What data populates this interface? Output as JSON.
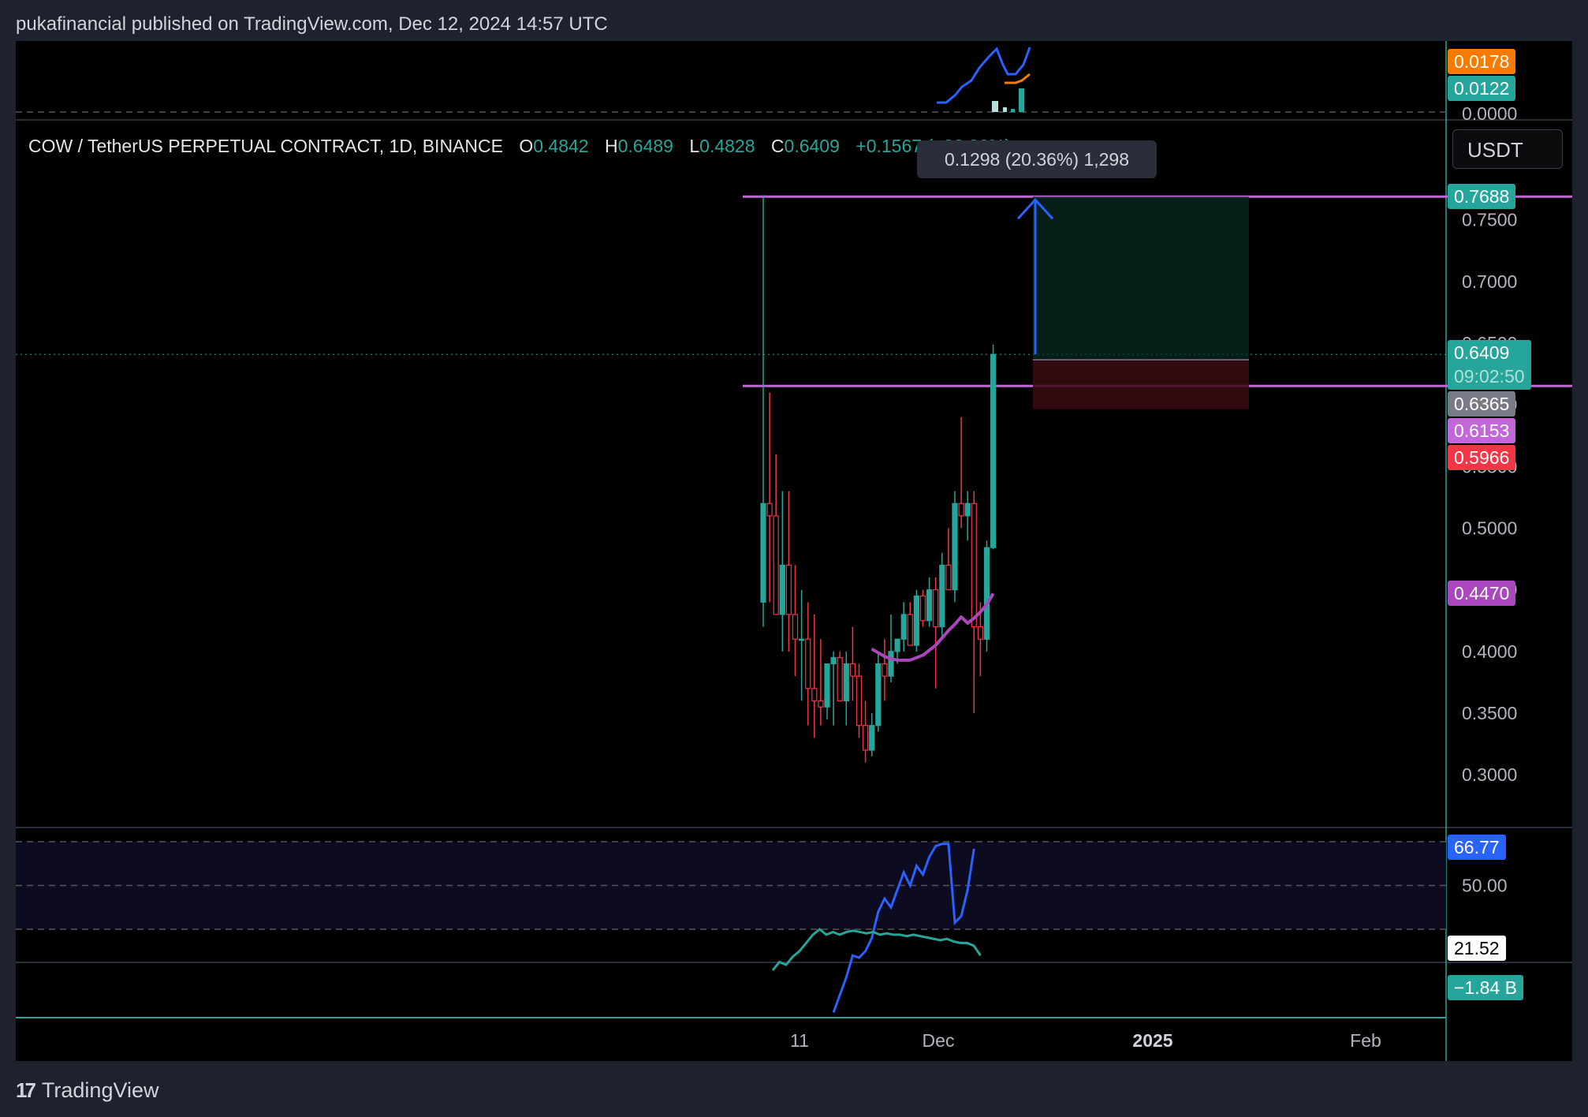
{
  "header": {
    "publisher_line": "pukafinancial published on TradingView.com, Dec 12, 2024 14:57 UTC"
  },
  "footer": {
    "brand": "TradingView",
    "logo_icon": "tradingview-logo-icon"
  },
  "toolbar": {
    "currency": "USDT"
  },
  "legend": {
    "symbol": "COW / TetherUS PERPETUAL CONTRACT, 1D, BINANCE",
    "o_label": "O",
    "o": "0.4842",
    "h_label": "H",
    "h": "0.6489",
    "l_label": "L",
    "l": "0.4828",
    "c_label": "C",
    "c": "0.6409",
    "change": "+0.1567 (+32.36%)"
  },
  "measure": {
    "text": "0.1298 (20.36%) 1,298"
  },
  "colors": {
    "up": "#26a69a",
    "down": "#f23645",
    "ma": "#ab47bc",
    "level": "#c266d9",
    "rsi": "#2962ff",
    "target": "#2962ff",
    "background": "#000000"
  },
  "chart_data": [
    {
      "type": "candlestick",
      "title": "COW / TetherUS PERPETUAL CONTRACT, 1D, BINANCE",
      "ylim": [
        0.272,
        0.831
      ],
      "y_ticks": [
        "0.7500",
        "0.7000",
        "0.6500",
        "0.6000",
        "0.5500",
        "0.5000",
        "0.4500",
        "0.4000",
        "0.3500",
        "0.3000"
      ],
      "x_ticks": [
        {
          "label": "11",
          "day": 0
        },
        {
          "label": "Dec",
          "day": 20
        },
        {
          "label": "2025",
          "day": 51,
          "bold": true
        },
        {
          "label": "Feb",
          "day": 82
        }
      ],
      "candles": [
        {
          "o": 0.44,
          "h": 0.77,
          "l": 0.42,
          "c": 0.52
        },
        {
          "o": 0.52,
          "h": 0.61,
          "l": 0.44,
          "c": 0.51
        },
        {
          "o": 0.51,
          "h": 0.56,
          "l": 0.43,
          "c": 0.43
        },
        {
          "o": 0.43,
          "h": 0.53,
          "l": 0.4,
          "c": 0.47
        },
        {
          "o": 0.47,
          "h": 0.53,
          "l": 0.4,
          "c": 0.43
        },
        {
          "o": 0.43,
          "h": 0.47,
          "l": 0.38,
          "c": 0.41
        },
        {
          "o": 0.41,
          "h": 0.45,
          "l": 0.36,
          "c": 0.41
        },
        {
          "o": 0.41,
          "h": 0.44,
          "l": 0.34,
          "c": 0.37
        },
        {
          "o": 0.37,
          "h": 0.43,
          "l": 0.33,
          "c": 0.36
        },
        {
          "o": 0.36,
          "h": 0.41,
          "l": 0.34,
          "c": 0.355
        },
        {
          "o": 0.355,
          "h": 0.39,
          "l": 0.345,
          "c": 0.39
        },
        {
          "o": 0.39,
          "h": 0.4,
          "l": 0.34,
          "c": 0.395
        },
        {
          "o": 0.395,
          "h": 0.4,
          "l": 0.36,
          "c": 0.36
        },
        {
          "o": 0.36,
          "h": 0.4,
          "l": 0.34,
          "c": 0.39
        },
        {
          "o": 0.39,
          "h": 0.42,
          "l": 0.36,
          "c": 0.38
        },
        {
          "o": 0.38,
          "h": 0.39,
          "l": 0.33,
          "c": 0.34
        },
        {
          "o": 0.34,
          "h": 0.36,
          "l": 0.31,
          "c": 0.32
        },
        {
          "o": 0.32,
          "h": 0.35,
          "l": 0.315,
          "c": 0.34
        },
        {
          "o": 0.34,
          "h": 0.4,
          "l": 0.335,
          "c": 0.39
        },
        {
          "o": 0.39,
          "h": 0.41,
          "l": 0.36,
          "c": 0.38
        },
        {
          "o": 0.38,
          "h": 0.43,
          "l": 0.375,
          "c": 0.4
        },
        {
          "o": 0.4,
          "h": 0.41,
          "l": 0.39,
          "c": 0.41
        },
        {
          "o": 0.41,
          "h": 0.44,
          "l": 0.4,
          "c": 0.43
        },
        {
          "o": 0.43,
          "h": 0.44,
          "l": 0.41,
          "c": 0.405
        },
        {
          "o": 0.405,
          "h": 0.45,
          "l": 0.4,
          "c": 0.445
        },
        {
          "o": 0.445,
          "h": 0.45,
          "l": 0.42,
          "c": 0.425
        },
        {
          "o": 0.425,
          "h": 0.46,
          "l": 0.42,
          "c": 0.45
        },
        {
          "o": 0.45,
          "h": 0.46,
          "l": 0.37,
          "c": 0.42
        },
        {
          "o": 0.42,
          "h": 0.48,
          "l": 0.41,
          "c": 0.47
        },
        {
          "o": 0.47,
          "h": 0.5,
          "l": 0.45,
          "c": 0.45
        },
        {
          "o": 0.45,
          "h": 0.53,
          "l": 0.44,
          "c": 0.52
        },
        {
          "o": 0.52,
          "h": 0.59,
          "l": 0.5,
          "c": 0.51
        },
        {
          "o": 0.51,
          "h": 0.53,
          "l": 0.49,
          "c": 0.52
        },
        {
          "o": 0.52,
          "h": 0.53,
          "l": 0.35,
          "c": 0.42
        },
        {
          "o": 0.42,
          "h": 0.44,
          "l": 0.38,
          "c": 0.41
        },
        {
          "o": 0.41,
          "h": 0.49,
          "l": 0.4,
          "c": 0.4842
        },
        {
          "o": 0.4842,
          "h": 0.6489,
          "l": 0.4828,
          "c": 0.6409
        }
      ],
      "moving_average": [
        {
          "i": 17,
          "v": 0.402
        },
        {
          "i": 18,
          "v": 0.399
        },
        {
          "i": 19,
          "v": 0.396
        },
        {
          "i": 20,
          "v": 0.394
        },
        {
          "i": 21,
          "v": 0.393
        },
        {
          "i": 22,
          "v": 0.393
        },
        {
          "i": 23,
          "v": 0.393
        },
        {
          "i": 24,
          "v": 0.395
        },
        {
          "i": 25,
          "v": 0.397
        },
        {
          "i": 26,
          "v": 0.401
        },
        {
          "i": 27,
          "v": 0.405
        },
        {
          "i": 28,
          "v": 0.411
        },
        {
          "i": 29,
          "v": 0.417
        },
        {
          "i": 30,
          "v": 0.422
        },
        {
          "i": 31,
          "v": 0.428
        },
        {
          "i": 32,
          "v": 0.423
        },
        {
          "i": 33,
          "v": 0.427
        },
        {
          "i": 34,
          "v": 0.432
        },
        {
          "i": 35,
          "v": 0.438
        },
        {
          "i": 36,
          "v": 0.447
        }
      ],
      "levels": [
        0.7688,
        0.6153
      ],
      "position": {
        "entry": 0.6365,
        "target": 0.7688,
        "stop": 0.5966
      },
      "price_labels": [
        {
          "value": "0.7688",
          "color": "#26a69a"
        },
        {
          "value": "0.6409",
          "sub": "09:02:50",
          "color": "#26a69a"
        },
        {
          "value": "0.6365",
          "color": "#787b86"
        },
        {
          "value": "0.6153",
          "color": "#c266d9"
        },
        {
          "value": "0.5966",
          "color": "#f23645"
        },
        {
          "value": "0.4470",
          "color": "#ab47bc"
        }
      ]
    },
    {
      "type": "line+bar",
      "name": "top-indicator",
      "y_ticks": [
        "0.0000"
      ],
      "value_labels": [
        {
          "value": "0.0178",
          "color": "#f57c00"
        },
        {
          "value": "0.0122",
          "color": "#26a69a"
        }
      ]
    },
    {
      "type": "line",
      "name": "rsi",
      "ylim": [
        0,
        100
      ],
      "bands": [
        70,
        30
      ],
      "y_ticks": [
        "50.00"
      ],
      "values": [
        {
          "i": 11,
          "v": -8
        },
        {
          "i": 12,
          "v": 0
        },
        {
          "i": 13,
          "v": 8
        },
        {
          "i": 14,
          "v": 18
        },
        {
          "i": 15,
          "v": 17
        },
        {
          "i": 16,
          "v": 20
        },
        {
          "i": 17,
          "v": 26
        },
        {
          "i": 18,
          "v": 38
        },
        {
          "i": 19,
          "v": 44
        },
        {
          "i": 20,
          "v": 40
        },
        {
          "i": 21,
          "v": 48
        },
        {
          "i": 22,
          "v": 56
        },
        {
          "i": 23,
          "v": 50
        },
        {
          "i": 24,
          "v": 59
        },
        {
          "i": 25,
          "v": 55
        },
        {
          "i": 26,
          "v": 63
        },
        {
          "i": 27,
          "v": 68
        },
        {
          "i": 28,
          "v": 69
        },
        {
          "i": 29,
          "v": 69
        },
        {
          "i": 30,
          "v": 33
        },
        {
          "i": 31,
          "v": 36
        },
        {
          "i": 32,
          "v": 48
        },
        {
          "i": 33,
          "v": 66.77
        }
      ],
      "value_labels": [
        {
          "value": "66.77",
          "color": "#2962ff"
        },
        {
          "value": "21.52",
          "color": "#ffffff",
          "text_color": "#000000"
        }
      ]
    },
    {
      "type": "line",
      "name": "volume-delta",
      "values": [
        -1.3,
        -1.6,
        -1.5,
        -1.8,
        -2.0,
        -2.3,
        -2.6,
        -2.8,
        -2.6,
        -2.7,
        -2.6,
        -2.7,
        -2.75,
        -2.7,
        -2.65,
        -2.7,
        -2.6,
        -2.65,
        -2.6,
        -2.6,
        -2.55,
        -2.6,
        -2.55,
        -2.5,
        -2.45,
        -2.4,
        -2.45,
        -2.35,
        -2.3,
        -2.3,
        -2.2,
        -1.84
      ],
      "value_labels": [
        {
          "value": "−1.84 B",
          "color": "#26a69a"
        }
      ]
    }
  ]
}
